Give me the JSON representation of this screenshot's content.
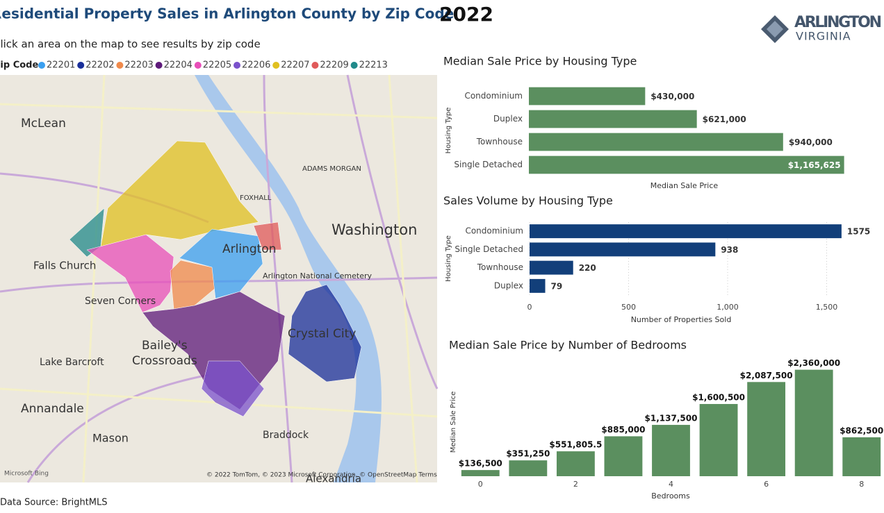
{
  "header": {
    "title": "Residential Property Sales in Arlington County by Zip Code",
    "year": "2022",
    "logo_top": "ARLINGTON",
    "logo_bottom": "VIRGINIA"
  },
  "instruction": "Click an area on the map to see results by zip code",
  "legend": {
    "title": "Zip Code",
    "items": [
      {
        "name": "22201",
        "color": "#3a9ff0"
      },
      {
        "name": "22202",
        "color": "#1a2f9a"
      },
      {
        "name": "22203",
        "color": "#f08a4b"
      },
      {
        "name": "22204",
        "color": "#5e1a7a"
      },
      {
        "name": "22205",
        "color": "#e84fb8"
      },
      {
        "name": "22206",
        "color": "#7b52cc"
      },
      {
        "name": "22207",
        "color": "#e0c020"
      },
      {
        "name": "22209",
        "color": "#e05a5a"
      },
      {
        "name": "22213",
        "color": "#218a8a"
      }
    ]
  },
  "map_labels": [
    "McLean",
    "Washington",
    "Arlington",
    "Falls Church",
    "Seven Corners",
    "Bailey's",
    "Crossroads",
    "Lake Barcroft",
    "Annandale",
    "Mason",
    "Crystal City",
    "Braddock",
    "Arlington National Cemetery",
    "ADAMS MORGAN",
    "FOXHALL",
    "Alexandria"
  ],
  "map_credit": "© 2022 TomTom, © 2023 Microsoft Corporation, © OpenStreetMap  Terms",
  "map_brand": "Microsoft Bing",
  "data_source": "Data Source: BrightMLS",
  "chart_data": [
    {
      "type": "barh",
      "title": "Median Sale Price by Housing Type",
      "y_label": "Housing Type",
      "x_label": "Median Sale Price",
      "categories": [
        "Condominium",
        "Duplex",
        "Townhouse",
        "Single Detached"
      ],
      "values": [
        430000,
        621000,
        940000,
        1165625
      ],
      "value_labels": [
        "$430,000",
        "$621,000",
        "$940,000",
        "$1,165,625"
      ],
      "color": "#5b8f5f",
      "xlim": [
        0,
        1200000
      ],
      "xticks": [],
      "grid": false
    },
    {
      "type": "barh",
      "title": "Sales Volume by Housing Type",
      "y_label": "Housing Type",
      "x_label": "Number of Properties Sold",
      "categories": [
        "Condominium",
        "Single Detached",
        "Townhouse",
        "Duplex"
      ],
      "values": [
        1575,
        938,
        220,
        79
      ],
      "color": "#123f7a",
      "xlim": [
        0,
        1600
      ],
      "xticks": [
        0,
        500,
        {
          "value": 1000,
          "label": "1,000"
        },
        {
          "value": 1500,
          "label": "1,500"
        }
      ],
      "grid": true
    },
    {
      "type": "bar",
      "title": "Median Sale Price by Number of Bedrooms",
      "y_label": "Median Sale Price",
      "x_label": "Bedrooms",
      "categories": [
        "0",
        null,
        "2",
        null,
        "4",
        null,
        "6",
        null,
        "8"
      ],
      "values": [
        136500,
        351250,
        551805.5,
        885000,
        1137500,
        1600500,
        2087500,
        2360000,
        862500
      ],
      "value_labels": [
        "$136,500",
        "$351,250",
        "$551,805.5",
        "$885,000",
        "$1,137,500",
        "$1,600,500",
        "$2,087,500",
        "$2,360,000",
        "$862,500"
      ],
      "color": "#5b8f5f",
      "ylim": [
        0,
        2400000
      ],
      "yticks": [],
      "grid": false
    }
  ]
}
